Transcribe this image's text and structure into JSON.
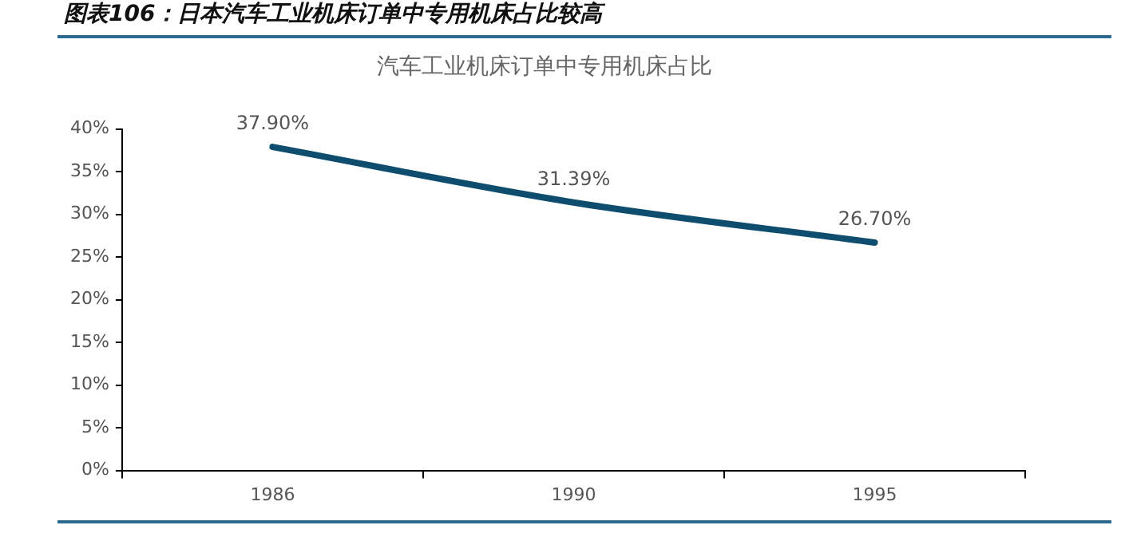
{
  "chart_data": {
    "type": "line",
    "title": "图表106：日本汽车工业机床订单中专用机床占比较高",
    "subtitle": "汽车工业机床订单中专用机床占比",
    "categories": [
      "1986",
      "1990",
      "1995"
    ],
    "series": [
      {
        "color": "#0e4d6e",
        "values": [
          37.9,
          31.39,
          26.7
        ],
        "value_labels": [
          "37.90%",
          "31.39%",
          "26.70%"
        ]
      }
    ],
    "ylim": [
      0,
      40
    ],
    "yticks": [
      {
        "value": 0,
        "label": "0%"
      },
      {
        "value": 5,
        "label": "5%"
      },
      {
        "value": 10,
        "label": "10%"
      },
      {
        "value": 15,
        "label": "15%"
      },
      {
        "value": 20,
        "label": "20%"
      },
      {
        "value": 25,
        "label": "25%"
      },
      {
        "value": 30,
        "label": "30%"
      },
      {
        "value": 35,
        "label": "35%"
      },
      {
        "value": 40,
        "label": "40%"
      }
    ],
    "grid": false,
    "legend": false,
    "marker": "none",
    "line_style": "solid"
  }
}
